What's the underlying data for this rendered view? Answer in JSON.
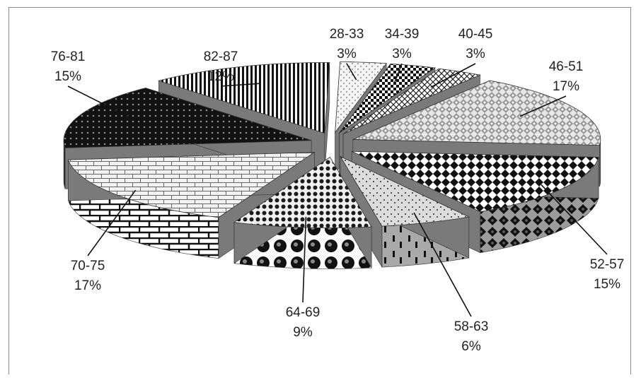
{
  "chart_data": {
    "type": "pie",
    "style": "3d-exploded",
    "legend": "none",
    "categories": [
      "28-33",
      "34-39",
      "40-45",
      "46-51",
      "52-57",
      "58-63",
      "64-69",
      "70-75",
      "76-81",
      "82-87"
    ],
    "values": [
      3,
      3,
      3,
      17,
      15,
      6,
      9,
      17,
      15,
      12
    ],
    "labels": [
      "3%",
      "3%",
      "3%",
      "17%",
      "15%",
      "6%",
      "9%",
      "17%",
      "15%",
      "12%"
    ],
    "title": ""
  },
  "colors": {
    "frame": "#8c8c8c",
    "text": "#222222",
    "leader": "#111111"
  }
}
